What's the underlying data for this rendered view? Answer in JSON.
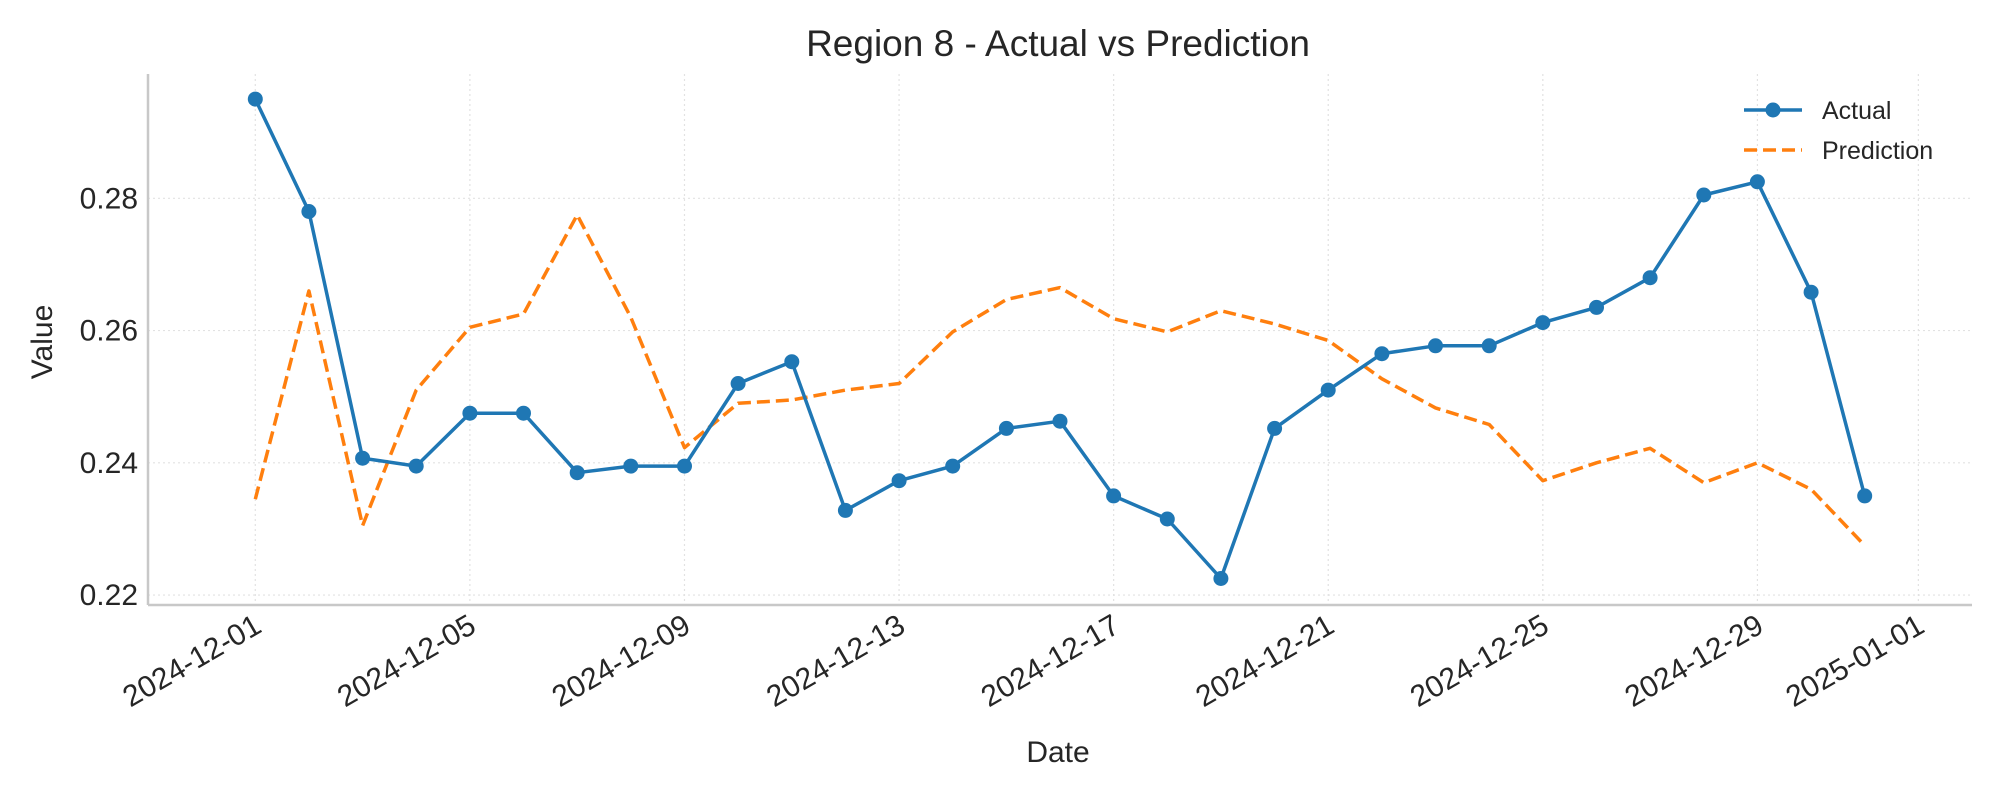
{
  "chart_data": {
    "type": "line",
    "title": "Region 8 - Actual vs Prediction",
    "xlabel": "Date",
    "ylabel": "Value",
    "x": [
      "2024-12-01",
      "2024-12-02",
      "2024-12-03",
      "2024-12-04",
      "2024-12-05",
      "2024-12-06",
      "2024-12-07",
      "2024-12-08",
      "2024-12-09",
      "2024-12-10",
      "2024-12-11",
      "2024-12-12",
      "2024-12-13",
      "2024-12-14",
      "2024-12-15",
      "2024-12-16",
      "2024-12-17",
      "2024-12-18",
      "2024-12-19",
      "2024-12-20",
      "2024-12-21",
      "2024-12-22",
      "2024-12-23",
      "2024-12-24",
      "2024-12-25",
      "2024-12-26",
      "2024-12-27",
      "2024-12-28",
      "2024-12-29",
      "2024-12-30",
      "2024-12-31"
    ],
    "series": [
      {
        "name": "Actual",
        "color": "#1f77b4",
        "style": "solid-with-markers",
        "values": [
          0.295,
          0.278,
          0.2407,
          0.2395,
          0.2475,
          0.2475,
          0.2385,
          0.2395,
          0.2395,
          0.252,
          0.2553,
          0.2328,
          0.2373,
          0.2395,
          0.2452,
          0.2463,
          0.235,
          0.2315,
          0.2225,
          0.2452,
          0.251,
          0.2565,
          0.2577,
          0.2577,
          0.2612,
          0.2635,
          0.268,
          0.2805,
          0.2825,
          0.2658,
          0.235
        ]
      },
      {
        "name": "Prediction",
        "color": "#ff7f0e",
        "style": "dashed",
        "values": [
          0.2345,
          0.266,
          0.2305,
          0.251,
          0.2605,
          0.2625,
          0.2775,
          0.262,
          0.2423,
          0.249,
          0.2495,
          0.251,
          0.252,
          0.2598,
          0.2647,
          0.2665,
          0.2618,
          0.2598,
          0.263,
          0.261,
          0.2585,
          0.2527,
          0.2483,
          0.2458,
          0.2373,
          0.24,
          0.2422,
          0.237,
          0.24,
          0.236,
          0.2275
        ]
      }
    ],
    "xticks": [
      "2024-12-01",
      "2024-12-05",
      "2024-12-09",
      "2024-12-13",
      "2024-12-17",
      "2024-12-21",
      "2024-12-25",
      "2024-12-29",
      "2025-01-01"
    ],
    "yticks": [
      0.22,
      0.24,
      0.26,
      0.28
    ],
    "ylim": [
      0.2185,
      0.2988
    ],
    "xlim": [
      "2024-11-29",
      "2025-01-02"
    ],
    "grid": true,
    "legend": "top-right"
  }
}
